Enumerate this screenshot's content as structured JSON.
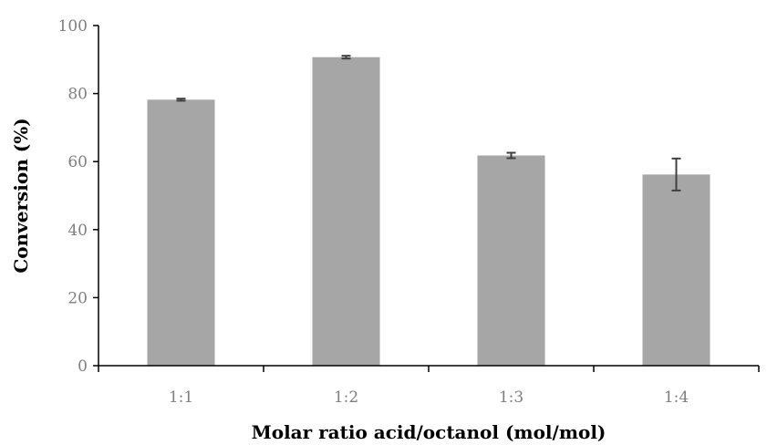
{
  "chart_data": {
    "type": "bar",
    "title": "",
    "xlabel": "Molar ratio acid/octanol (mol/mol)",
    "ylabel": "Conversion (%)",
    "categories": [
      "1:1",
      "1:2",
      "1:3",
      "1:4"
    ],
    "values": [
      78.2,
      90.7,
      61.8,
      56.2
    ],
    "error": [
      0.3,
      0.4,
      0.8,
      4.7
    ],
    "ylim": [
      0,
      100
    ],
    "yticks": [
      "0",
      "20",
      "40",
      "60",
      "80",
      "100"
    ],
    "grid": false,
    "legend": "none",
    "bar_color": "#a6a6a6",
    "error_color": "#404040"
  }
}
